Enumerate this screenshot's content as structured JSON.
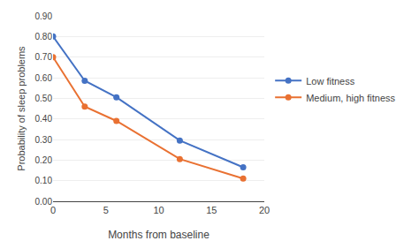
{
  "chart_data": {
    "type": "line",
    "xlabel": "Months from baseline",
    "ylabel": "Probability of sleep problems",
    "x": [
      0,
      3,
      6,
      12,
      18
    ],
    "series": [
      {
        "name": "Low fitness",
        "color": "#4472C4",
        "marker": "circle",
        "line_style": "solid",
        "values": [
          0.8,
          0.585,
          0.505,
          0.295,
          0.165
        ]
      },
      {
        "name": "Medium, high fitness",
        "color": "#E97132",
        "marker": "circle",
        "line_style": "solid",
        "values": [
          0.7,
          0.46,
          0.39,
          0.205,
          0.11
        ]
      }
    ],
    "xlim": [
      0,
      20
    ],
    "xticks": [
      0,
      5,
      10,
      15,
      20
    ],
    "ylim": [
      0.0,
      0.9
    ],
    "yticks": [
      {
        "value": 0.0,
        "label": "0.00"
      },
      {
        "value": 0.1,
        "label": "0.10"
      },
      {
        "value": 0.2,
        "label": "0.20"
      },
      {
        "value": 0.3,
        "label": "0.30"
      },
      {
        "value": 0.4,
        "label": "0.40"
      },
      {
        "value": 0.5,
        "label": "0.50"
      },
      {
        "value": 0.6,
        "label": "0.60"
      },
      {
        "value": 0.7,
        "label": "0.70"
      },
      {
        "value": 0.8,
        "label": "0.80"
      },
      {
        "value": 0.9,
        "label": "0.90"
      }
    ],
    "grid": "y",
    "legend": "right"
  }
}
